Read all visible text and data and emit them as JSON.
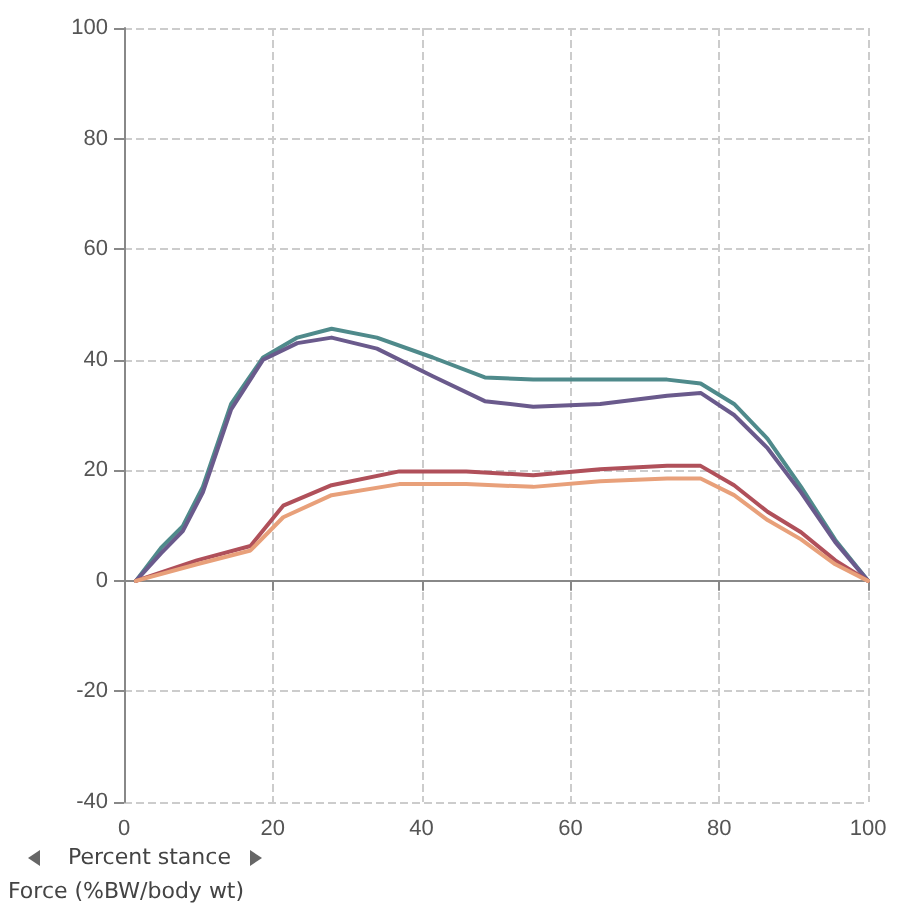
{
  "chart_data": {
    "type": "line",
    "xlabel": "Percent stance",
    "ylabel": "Force (%BW/body wt)",
    "xlim": [
      0,
      100
    ],
    "xticks": [
      0,
      20,
      40,
      60,
      80,
      100
    ],
    "ylim": [
      -40,
      100
    ],
    "yticks": [
      -40,
      -20,
      0,
      20,
      40,
      60,
      80,
      100
    ],
    "grid": true,
    "marker": "none",
    "line_style": "solid",
    "series": [
      {
        "color": "#4f8a8b",
        "x": [
          1.6,
          5,
          7.9,
          10.6,
          14.4,
          18.7,
          23.3,
          27.9,
          34,
          41.5,
          48.5,
          55,
          64,
          73,
          77.5,
          82,
          86.5,
          91,
          95.6,
          100
        ],
        "values": [
          0,
          6,
          9.9,
          17,
          32,
          40.4,
          44,
          45.6,
          44,
          40.4,
          36.8,
          36.4,
          36.4,
          36.4,
          35.7,
          32,
          25.7,
          17,
          7.4,
          0
        ]
      },
      {
        "color": "#6a5a8c",
        "x": [
          1.6,
          5,
          7.9,
          10.6,
          14.4,
          18.7,
          23.3,
          27.9,
          34,
          41.5,
          48.5,
          55,
          64,
          73,
          77.5,
          82,
          86.5,
          91,
          95.6,
          100
        ],
        "values": [
          0,
          5,
          9,
          16,
          31,
          40,
          43,
          44,
          42,
          37,
          32.5,
          31.5,
          32,
          33.5,
          34,
          30,
          24,
          16,
          7,
          0
        ]
      },
      {
        "color": "#b0505a",
        "x": [
          1.6,
          9.8,
          17,
          21.4,
          27.9,
          37,
          46,
          55,
          64,
          73,
          77.5,
          82,
          86.5,
          91,
          95.6,
          100
        ],
        "values": [
          0,
          3.7,
          6.3,
          13.6,
          17.3,
          19.8,
          19.8,
          19.1,
          20.2,
          20.8,
          20.8,
          17.3,
          12.5,
          8.8,
          3.7,
          0
        ]
      },
      {
        "color": "#e8a07a",
        "x": [
          1.6,
          9.8,
          17,
          21.4,
          27.9,
          37,
          46,
          55,
          64,
          73,
          77.5,
          82,
          86.5,
          91,
          95.6,
          100
        ],
        "values": [
          0,
          3,
          5.5,
          11.5,
          15.5,
          17.5,
          17.5,
          17,
          18,
          18.5,
          18.5,
          15.5,
          11,
          7.5,
          3,
          0
        ]
      }
    ]
  }
}
